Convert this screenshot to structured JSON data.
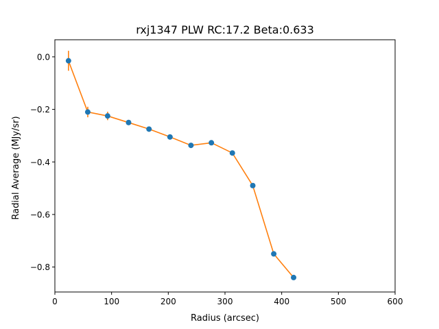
{
  "chart_data": {
    "type": "scatter",
    "title": "rxj1347  PLW  RC:17.2  Beta:0.633",
    "xlabel": "Radius (arcsec)",
    "ylabel": "Radial Average (MJy/sr)",
    "xlim": [
      0,
      600
    ],
    "ylim": [
      -0.895,
      0.065
    ],
    "xticks": [
      0,
      100,
      200,
      300,
      400,
      500,
      600
    ],
    "xtick_labels": [
      "0",
      "100",
      "200",
      "300",
      "400",
      "500",
      "600"
    ],
    "yticks": [
      0.0,
      -0.2,
      -0.4,
      -0.6,
      -0.8
    ],
    "ytick_labels": [
      "0.0",
      "−0.2",
      "−0.4",
      "−0.6",
      "−0.8"
    ],
    "grid": false,
    "series": [
      {
        "marker_color": "#1f77b4",
        "line_color": "#ff7f0e",
        "x": [
          24,
          58,
          93,
          130,
          166,
          203,
          240,
          276,
          313,
          349,
          386,
          421
        ],
        "y": [
          -0.015,
          -0.21,
          -0.225,
          -0.25,
          -0.275,
          -0.305,
          -0.337,
          -0.327,
          -0.366,
          -0.49,
          -0.75,
          -0.84
        ],
        "yerr": [
          0.038,
          0.02,
          0.016,
          0.01,
          0.01,
          0.008,
          0.008,
          0.008,
          0.008,
          0.008,
          0.008,
          0.008
        ]
      }
    ]
  }
}
